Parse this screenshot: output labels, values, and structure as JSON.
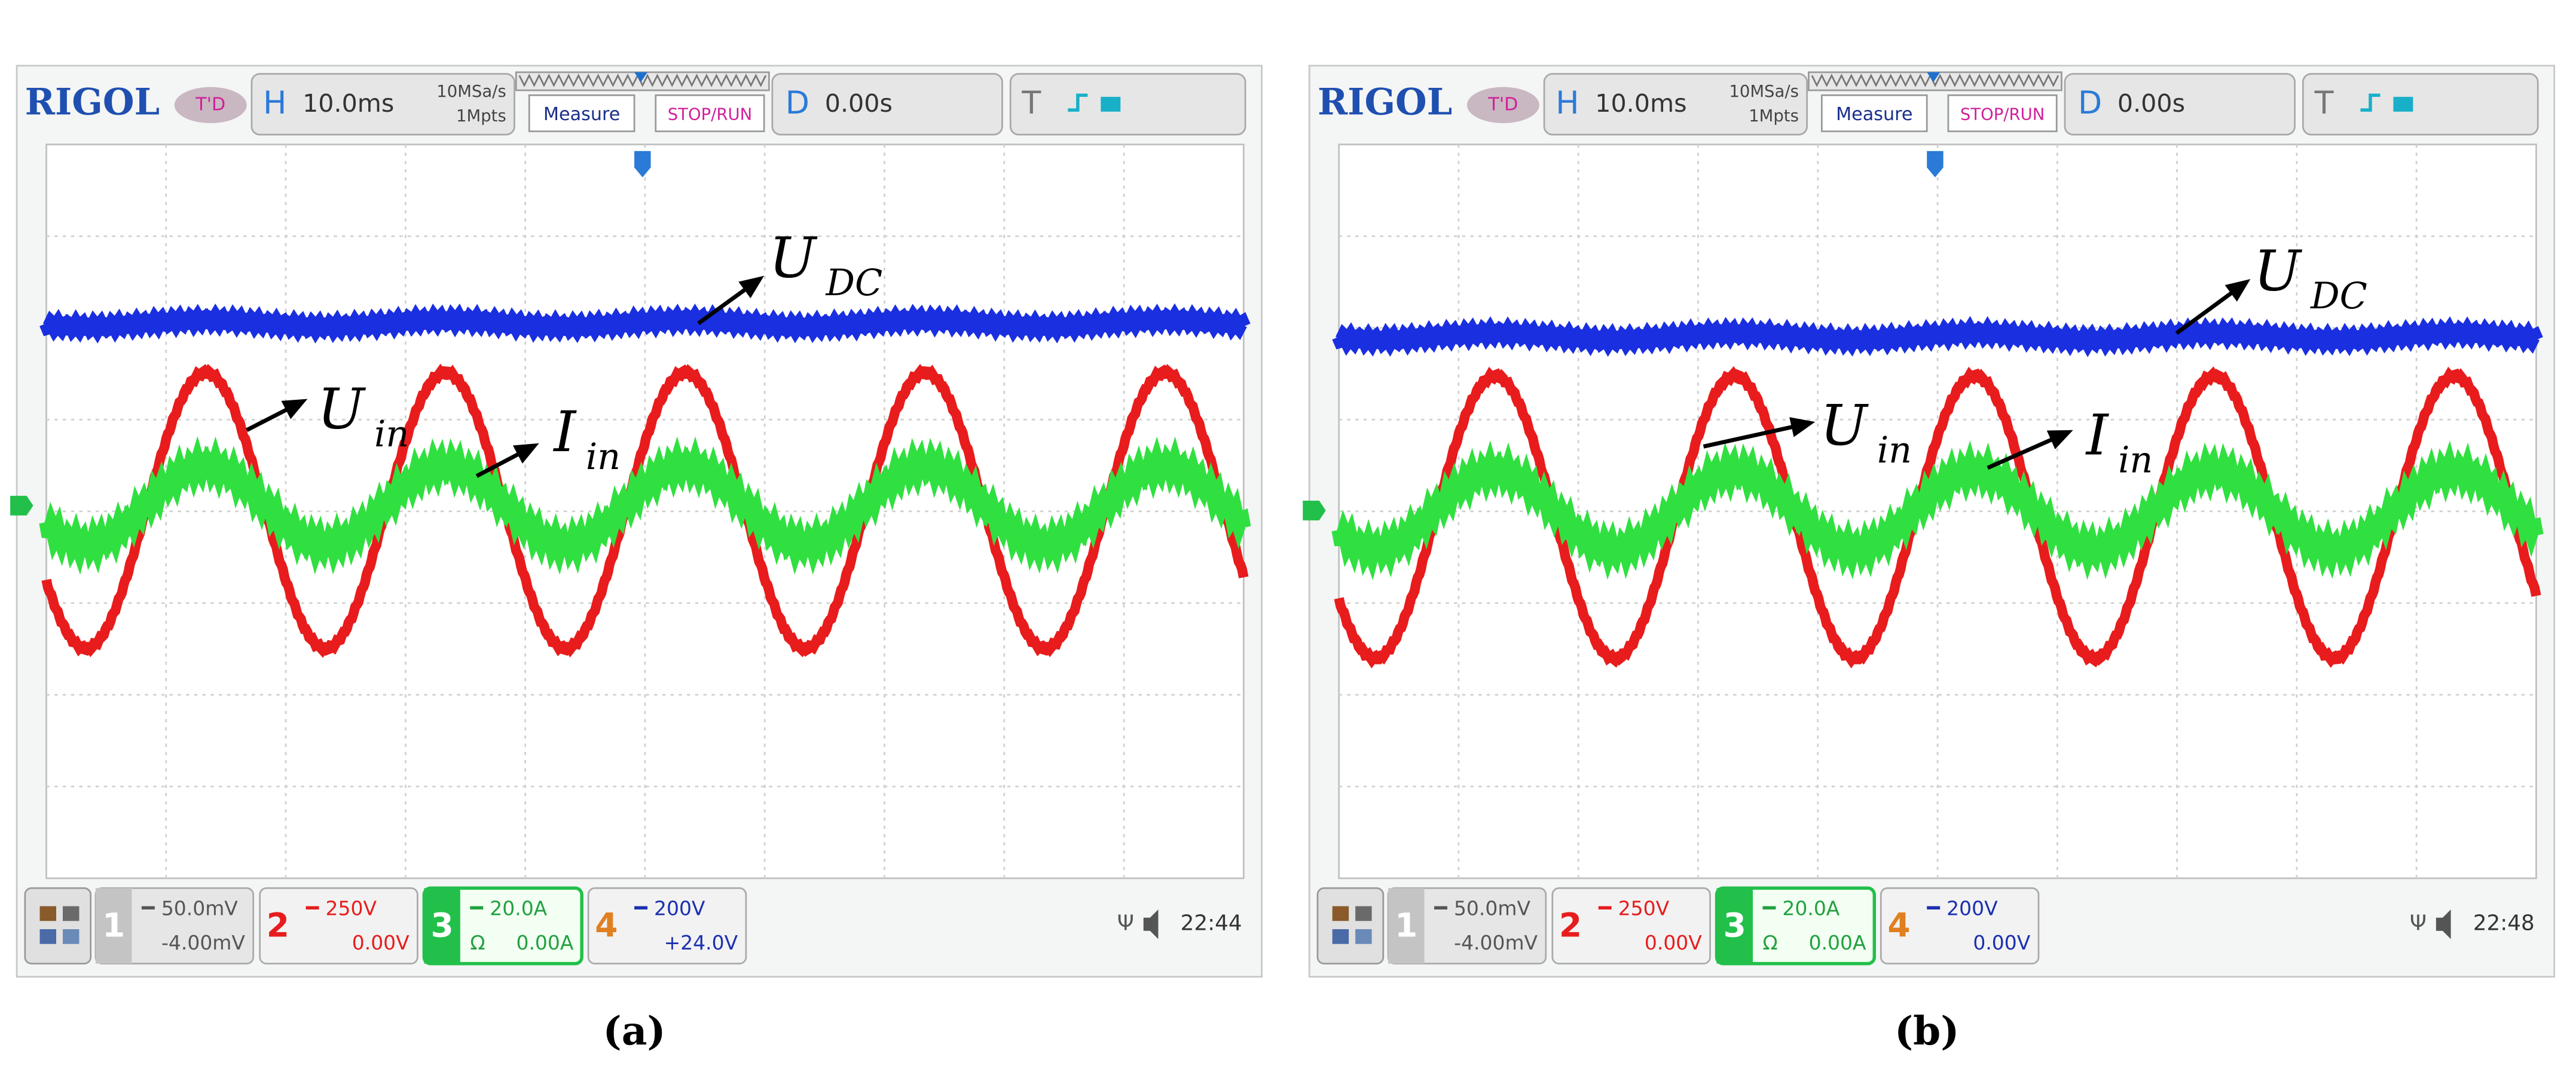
{
  "panels": [
    {
      "brand": "RIGOL",
      "trigger_mode": "T'D",
      "horizontal": {
        "key": "H",
        "timebase": "10.0ms",
        "sample_rate": "10MSa/s",
        "memory": "1Mpts"
      },
      "buttons": [
        "Measure",
        "STOP/RUN"
      ],
      "delay": {
        "key": "D",
        "value": "0.00s"
      },
      "trigger": {
        "key": "T"
      },
      "channels": [
        {
          "number": "1",
          "scale": "50.0mV",
          "offset": "-4.00mV"
        },
        {
          "number": "2",
          "scale": "250V",
          "offset": "0.00V"
        },
        {
          "number": "3",
          "scale": "20.0A",
          "unit": "Ω",
          "offset": "0.00A"
        },
        {
          "number": "4",
          "scale": "200V",
          "offset": "+24.0V"
        }
      ],
      "clock": "22:44",
      "annotations": [
        {
          "symbol": "U",
          "subscript": "DC"
        },
        {
          "symbol": "U",
          "subscript": "in"
        },
        {
          "symbol": "I",
          "subscript": "in"
        }
      ],
      "caption": "(a)"
    },
    {
      "brand": "RIGOL",
      "trigger_mode": "T'D",
      "horizontal": {
        "key": "H",
        "timebase": "10.0ms",
        "sample_rate": "10MSa/s",
        "memory": "1Mpts"
      },
      "buttons": [
        "Measure",
        "STOP/RUN"
      ],
      "delay": {
        "key": "D",
        "value": "0.00s"
      },
      "trigger": {
        "key": "T"
      },
      "channels": [
        {
          "number": "1",
          "scale": "50.0mV",
          "offset": "-4.00mV"
        },
        {
          "number": "2",
          "scale": "250V",
          "offset": "0.00V"
        },
        {
          "number": "3",
          "scale": "20.0A",
          "unit": "Ω",
          "offset": "0.00A"
        },
        {
          "number": "4",
          "scale": "200V",
          "offset": "0.00V"
        }
      ],
      "clock": "22:48",
      "annotations": [
        {
          "symbol": "U",
          "subscript": "DC"
        },
        {
          "symbol": "U",
          "subscript": "in"
        },
        {
          "symbol": "I",
          "subscript": "in"
        }
      ],
      "caption": "(b)"
    }
  ]
}
